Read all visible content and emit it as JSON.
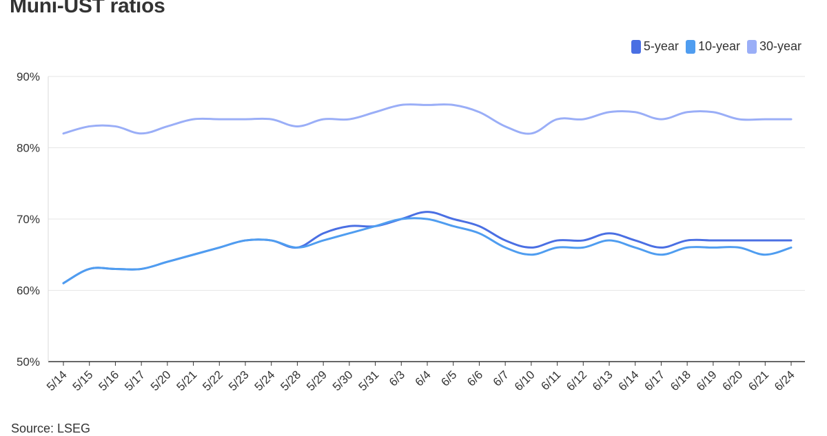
{
  "header": {
    "title": "Muni-UST ratios"
  },
  "footer": {
    "source": "Source: LSEG"
  },
  "chart_data": {
    "type": "line",
    "title": "Muni-UST ratios",
    "xlabel": "",
    "ylabel": "",
    "categories": [
      "5/14",
      "5/15",
      "5/16",
      "5/17",
      "5/20",
      "5/21",
      "5/22",
      "5/23",
      "5/24",
      "5/28",
      "5/29",
      "5/30",
      "5/31",
      "6/3",
      "6/4",
      "6/5",
      "6/6",
      "6/7",
      "6/10",
      "6/11",
      "6/12",
      "6/13",
      "6/14",
      "6/17",
      "6/18",
      "6/19",
      "6/20",
      "6/21",
      "6/24"
    ],
    "ylim": [
      50,
      90
    ],
    "yticks": [
      50,
      60,
      70,
      80,
      90
    ],
    "ytick_labels": [
      "50%",
      "60%",
      "70%",
      "80%",
      "90%"
    ],
    "grid": true,
    "legend_position": "top-right",
    "series": [
      {
        "name": "5-year",
        "color": "#4a6fe3",
        "values": [
          61,
          63,
          63,
          63,
          64,
          65,
          66,
          67,
          67,
          66,
          68,
          69,
          69,
          70,
          71,
          70,
          69,
          67,
          66,
          67,
          67,
          68,
          67,
          66,
          67,
          67,
          67,
          67,
          67
        ]
      },
      {
        "name": "10-year",
        "color": "#4f9df0",
        "values": [
          61,
          63,
          63,
          63,
          64,
          65,
          66,
          67,
          67,
          66,
          67,
          68,
          69,
          70,
          70,
          69,
          68,
          66,
          65,
          66,
          66,
          67,
          66,
          65,
          66,
          66,
          66,
          65,
          66
        ]
      },
      {
        "name": "30-year",
        "color": "#9aaef7",
        "values": [
          82,
          83,
          83,
          82,
          83,
          84,
          84,
          84,
          84,
          83,
          84,
          84,
          85,
          86,
          86,
          86,
          85,
          83,
          82,
          84,
          84,
          85,
          85,
          84,
          85,
          85,
          84,
          84,
          84
        ]
      }
    ]
  }
}
